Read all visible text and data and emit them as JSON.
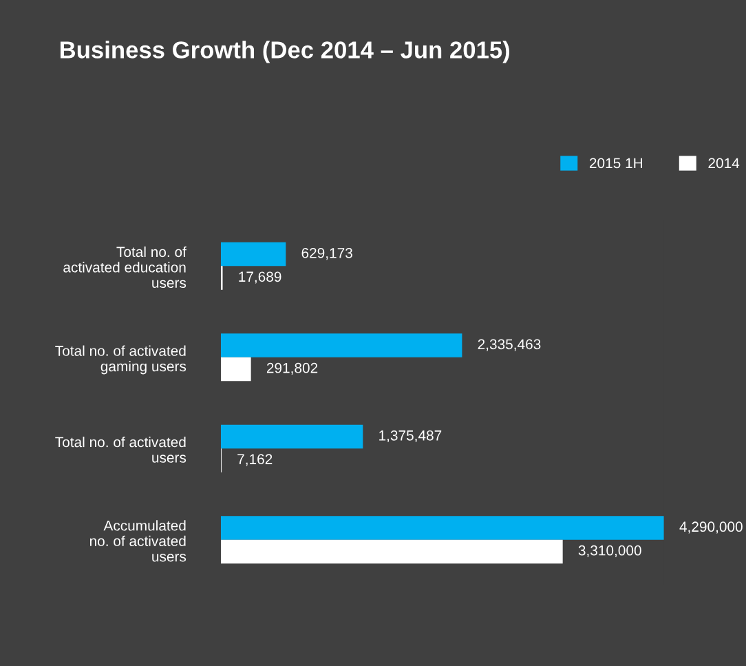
{
  "chart_data": {
    "type": "bar",
    "orientation": "horizontal",
    "title": "Business Growth (Dec 2014 – Jun 2015)",
    "categories": [
      "Total no. of\nactivated education\nusers",
      "Total no. of activated\ngaming users",
      "Total no. of activated\nusers",
      "Accumulated\nno. of activated\nusers"
    ],
    "series": [
      {
        "name": "2015 1H",
        "color": "#00b0f0",
        "values": [
          629173,
          2335463,
          1375487,
          4290000
        ],
        "value_labels": [
          "629,173",
          "2,335,463",
          "1,375,487",
          "4,290,000"
        ]
      },
      {
        "name": "2014",
        "color": "#ffffff",
        "values": [
          17689,
          291802,
          7162,
          3310000
        ],
        "value_labels": [
          "17,689",
          "291,802",
          "7,162",
          "3,310,000"
        ]
      }
    ],
    "legend": "top right",
    "grid": false,
    "tick_labels": "y"
  }
}
